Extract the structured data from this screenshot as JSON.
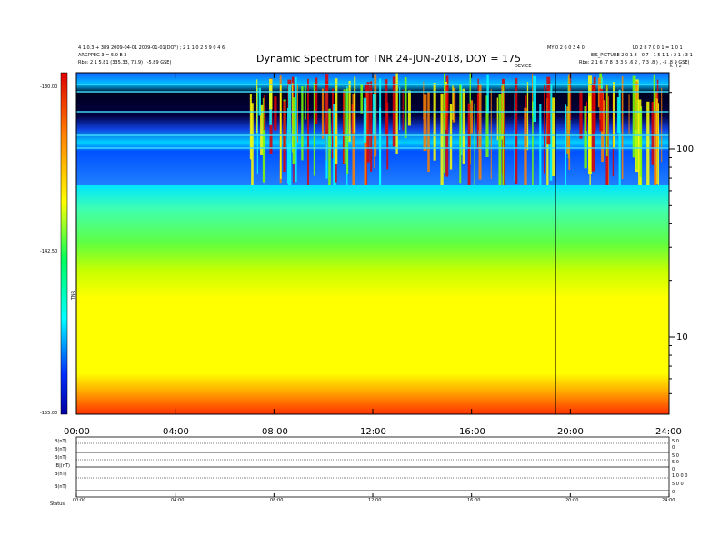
{
  "header": {
    "title": "Dynamic Spectrum for TNR 24-JUN-2018, DOY = 175",
    "left_line1": "4 1.0.3 + 389 2009-04-01 2009-01-01(DOY) ; 2 1 1 0 2 3 9 0 4 6",
    "left_line2": "ARGPPEG 3 = 5.0 E 3",
    "left_line3": "Rbe: 2 1 5.81 (335.33, 73.9) , -5.89 GSE)",
    "right_mid_line1": "MY 0 2 6 0 3 4 0",
    "right_line1": "L0 2 8 7 0 0 1 = 1 0 1",
    "right_line2": "EIS_PICTURE 2 0 1 8 - 0 7 - 1 5 1 1 : 2 1 : 3 1",
    "right_line3": "Rbe: 2 1 6 .7 8 (3 3 5 .6 2 , 7 3 .8 ) , -5 .8 9 GSE)",
    "mid_marker": "DEVICE",
    "corner_right": "k H z"
  },
  "colorbar": {
    "top_label": "-130.00",
    "mid_label": "-142.50",
    "bottom_label": "-155.00",
    "unit_label": "TNR"
  },
  "chart_data": {
    "type": "heatmap",
    "title": "Dynamic Spectrum for TNR 24-JUN-2018, DOY = 175",
    "x_tick_labels": [
      "00:00",
      "04:00",
      "08:00",
      "12:00",
      "16:00",
      "20:00",
      "24:00"
    ],
    "x_ticks_hours": [
      0,
      4,
      8,
      12,
      16,
      20,
      24
    ],
    "xlim_hours": [
      0,
      24
    ],
    "y_scale": "log",
    "y_tick_labels": [
      "100",
      "10"
    ],
    "y_ticks": [
      100,
      10
    ],
    "color_range": [
      -155.0,
      -130.0
    ],
    "colorbar_labels": [
      "-130.00",
      "-142.50",
      "-155.00"
    ],
    "vertical_marker_hours": [
      19.4
    ],
    "bands": [
      {
        "level": "saturated noise/strong emission",
        "approx_freq_top": 260,
        "approx_freq_bottom": 65
      },
      {
        "level": "cyan background",
        "approx_freq_top": 65,
        "approx_freq_bottom": 34
      },
      {
        "level": "green",
        "approx_freq_top": 34,
        "approx_freq_bottom": 20
      },
      {
        "level": "yellow",
        "approx_freq_top": 20,
        "approx_freq_bottom": 6
      },
      {
        "level": "orange/red floor",
        "approx_freq_top": 6,
        "approx_freq_bottom": 4
      }
    ]
  },
  "orbit_panel": {
    "row_labels": [
      "B(nT)",
      "B(nT)",
      "B(nT)",
      "|B|(nT)",
      "B(nT)",
      "B(nT)"
    ],
    "right_labels": [
      "5 0",
      "0",
      "5 0",
      "5 0",
      "0",
      "1 0 0 0",
      "5 0 0",
      "0"
    ],
    "bottom_ticks": [
      "00:00",
      "04:00",
      "08:00",
      "12:00",
      "16:00",
      "20:00",
      "24:00"
    ],
    "bottom_left_label": "Status"
  }
}
